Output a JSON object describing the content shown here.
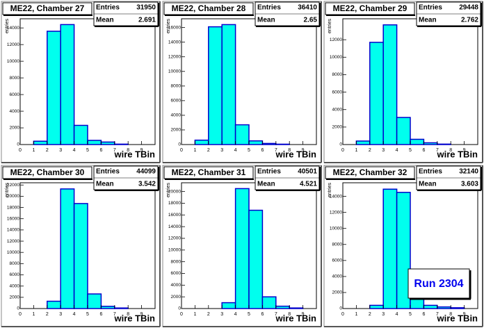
{
  "chart_data": [
    {
      "type": "histogram",
      "title": "ME22, Chamber 27",
      "stats": {
        "entries_label": "Entries",
        "entries": 31950,
        "mean_label": "Mean",
        "mean": 2.691
      },
      "xlabel": "wire TBin",
      "ylabel": "entries",
      "bins": [
        0,
        1,
        2,
        3,
        4,
        5,
        6,
        7,
        8,
        9,
        10
      ],
      "values": [
        0,
        400,
        13600,
        14400,
        2300,
        500,
        300,
        50,
        0,
        0
      ],
      "xlim": [
        0,
        10
      ],
      "xticks": [
        0,
        1,
        2,
        3,
        4,
        5,
        6,
        7,
        8,
        9
      ],
      "ylim": [
        0,
        15100
      ],
      "yticks": [
        0,
        2000,
        4000,
        6000,
        8000,
        10000,
        12000,
        14000
      ],
      "color": "#00ffee",
      "edge_color": "#0000cc"
    },
    {
      "type": "histogram",
      "title": "ME22, Chamber 28",
      "stats": {
        "entries_label": "Entries",
        "entries": 36410,
        "mean_label": "Mean",
        "mean": 2.65
      },
      "xlabel": "wire TBin",
      "ylabel": "entries",
      "bins": [
        0,
        1,
        2,
        3,
        4,
        5,
        6,
        7,
        8,
        9,
        10
      ],
      "values": [
        0,
        600,
        16100,
        16400,
        2700,
        500,
        150,
        50,
        0,
        0
      ],
      "xlim": [
        0,
        10
      ],
      "xticks": [
        0,
        1,
        2,
        3,
        4,
        5,
        6,
        7,
        8,
        9
      ],
      "ylim": [
        0,
        17200
      ],
      "yticks": [
        0,
        2000,
        4000,
        6000,
        8000,
        10000,
        12000,
        14000,
        16000
      ],
      "color": "#00ffee",
      "edge_color": "#0000cc"
    },
    {
      "type": "histogram",
      "title": "ME22, Chamber 29",
      "stats": {
        "entries_label": "Entries",
        "entries": 29448,
        "mean_label": "Mean",
        "mean": 2.762
      },
      "xlabel": "wire TBin",
      "ylabel": "entries",
      "bins": [
        0,
        1,
        2,
        3,
        4,
        5,
        6,
        7,
        8,
        9,
        10
      ],
      "values": [
        0,
        400,
        11700,
        13700,
        3100,
        600,
        200,
        50,
        0,
        0
      ],
      "xlim": [
        0,
        10
      ],
      "xticks": [
        0,
        1,
        2,
        3,
        4,
        5,
        6,
        7,
        8,
        9
      ],
      "ylim": [
        0,
        14400
      ],
      "yticks": [
        0,
        2000,
        4000,
        6000,
        8000,
        10000,
        12000
      ],
      "color": "#00ffee",
      "edge_color": "#0000cc"
    },
    {
      "type": "histogram",
      "title": "ME22, Chamber 30",
      "stats": {
        "entries_label": "Entries",
        "entries": 44099,
        "mean_label": "Mean",
        "mean": 3.542
      },
      "xlabel": "wire TBin",
      "ylabel": "entries",
      "bins": [
        0,
        1,
        2,
        3,
        4,
        5,
        6,
        7,
        8,
        9,
        10
      ],
      "values": [
        0,
        0,
        1300,
        21300,
        18700,
        2600,
        400,
        100,
        0,
        0
      ],
      "xlim": [
        0,
        10
      ],
      "xticks": [
        0,
        1,
        2,
        3,
        4,
        5,
        6,
        7,
        8,
        9
      ],
      "ylim": [
        0,
        22400
      ],
      "yticks": [
        0,
        2000,
        4000,
        6000,
        8000,
        10000,
        12000,
        14000,
        16000,
        18000,
        20000,
        22000
      ],
      "color": "#00ffee",
      "edge_color": "#0000cc"
    },
    {
      "type": "histogram",
      "title": "ME22, Chamber 31",
      "stats": {
        "entries_label": "Entries",
        "entries": 40501,
        "mean_label": "Mean",
        "mean": 4.521
      },
      "xlabel": "wire TBin",
      "ylabel": "entries",
      "bins": [
        0,
        1,
        2,
        3,
        4,
        5,
        6,
        7,
        8,
        9,
        10
      ],
      "values": [
        0,
        0,
        0,
        1000,
        20500,
        16800,
        2000,
        400,
        100,
        0
      ],
      "xlim": [
        0,
        10
      ],
      "xticks": [
        0,
        1,
        2,
        3,
        4,
        5,
        6,
        7,
        8,
        9
      ],
      "ylim": [
        0,
        21500
      ],
      "yticks": [
        0,
        2000,
        4000,
        6000,
        8000,
        10000,
        12000,
        14000,
        16000,
        18000,
        20000
      ],
      "color": "#00ffee",
      "edge_color": "#0000cc"
    },
    {
      "type": "histogram",
      "title": "ME22, Chamber 32",
      "stats": {
        "entries_label": "Entries",
        "entries": 32140,
        "mean_label": "Mean",
        "mean": 3.603
      },
      "xlabel": "wire TBin",
      "ylabel": "entries",
      "bins": [
        0,
        1,
        2,
        3,
        4,
        5,
        6,
        7,
        8,
        9,
        10
      ],
      "values": [
        0,
        0,
        400,
        14900,
        14500,
        2000,
        400,
        200,
        100,
        0
      ],
      "xlim": [
        0,
        10
      ],
      "xticks": [
        0,
        1,
        2,
        3,
        4,
        5,
        6,
        7,
        8,
        9
      ],
      "ylim": [
        0,
        15700
      ],
      "yticks": [
        0,
        2000,
        4000,
        6000,
        8000,
        10000,
        12000,
        14000
      ],
      "color": "#00ffee",
      "edge_color": "#0000cc"
    }
  ],
  "annotation": "Run 2304"
}
